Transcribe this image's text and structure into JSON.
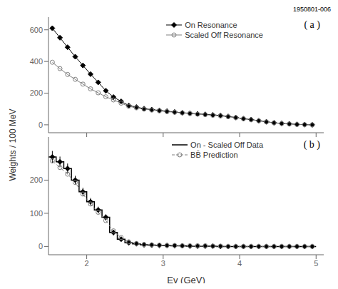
{
  "chart_data": [
    {
      "type": "line",
      "title": "1950801-006",
      "ylabel": "Weights / 100 MeV",
      "annotations": [
        "( a )"
      ],
      "xlim": [
        1.5,
        5.1
      ],
      "xticks": [
        2,
        3,
        4,
        5
      ],
      "ylim": [
        -50,
        680
      ],
      "yticks": [
        0,
        200,
        400,
        600
      ],
      "tick_labels": "y",
      "legend": "upper right",
      "series": [
        {
          "name": "On Resonance",
          "color": "#000000",
          "marker": "diamond",
          "x": [
            1.55,
            1.65,
            1.75,
            1.85,
            1.95,
            2.05,
            2.15,
            2.25,
            2.35,
            2.45,
            2.55,
            2.65,
            2.75,
            2.85,
            2.95,
            3.05,
            3.15,
            3.25,
            3.35,
            3.45,
            3.55,
            3.65,
            3.75,
            3.85,
            3.95,
            4.05,
            4.15,
            4.25,
            4.35,
            4.45,
            4.55,
            4.65,
            4.75,
            4.85,
            4.95
          ],
          "values": [
            610,
            550,
            490,
            430,
            375,
            320,
            268,
            215,
            175,
            148,
            122,
            112,
            102,
            96,
            91,
            86,
            81,
            76,
            73,
            69,
            66,
            63,
            59,
            53,
            46,
            39,
            33,
            26,
            19,
            13,
            9,
            6,
            3,
            1,
            0
          ]
        },
        {
          "name": "Scaled Off Resonance",
          "color": "#808080",
          "marker": "circle",
          "x": [
            1.55,
            1.65,
            1.75,
            1.85,
            1.95,
            2.05,
            2.15,
            2.25,
            2.35,
            2.45,
            2.55,
            2.65,
            2.75,
            2.85,
            2.95,
            3.05,
            3.15,
            3.25,
            3.35,
            3.45,
            3.55,
            3.65,
            3.75,
            3.85,
            3.95,
            4.05,
            4.15,
            4.25,
            4.35,
            4.45,
            4.55,
            4.65,
            4.75,
            4.85,
            4.95
          ],
          "values": [
            395,
            355,
            318,
            287,
            257,
            227,
            202,
            177,
            157,
            137,
            117,
            107,
            99,
            93,
            88,
            83,
            79,
            75,
            71,
            67,
            64,
            60,
            56,
            51,
            45,
            38,
            32,
            25,
            18,
            12,
            8,
            5,
            2,
            1,
            0
          ]
        }
      ]
    },
    {
      "type": "line",
      "xlabel": "Eγ (GeV)",
      "annotations": [
        "( b )"
      ],
      "xlim": [
        1.5,
        5.1
      ],
      "xticks": [
        2,
        3,
        4,
        5
      ],
      "ylim": [
        -25,
        330
      ],
      "yticks": [
        0,
        100,
        200
      ],
      "legend": "upper right",
      "series": [
        {
          "name": "On - Scaled Off Data",
          "type": "step",
          "color": "#000000",
          "bins": [
            1.5,
            1.6,
            1.7,
            1.8,
            1.9,
            2.0,
            2.1,
            2.2,
            2.3,
            2.4,
            2.5,
            2.6,
            2.7,
            2.8,
            2.9,
            3.0,
            3.1,
            3.2,
            3.3,
            3.4,
            3.5,
            3.6,
            3.7,
            3.8,
            3.9,
            4.0,
            4.1,
            4.2,
            4.3,
            4.4,
            4.5,
            4.6,
            4.7,
            4.8,
            4.9,
            5.0
          ],
          "values": [
            270,
            255,
            235,
            200,
            165,
            135,
            110,
            88,
            42,
            22,
            11,
            8,
            5,
            4,
            3,
            3,
            2,
            2,
            1,
            1,
            1,
            1,
            0,
            0,
            0,
            0,
            0,
            0,
            0,
            0,
            0,
            0,
            0,
            0,
            0
          ]
        },
        {
          "type": "scatter",
          "color": "#000000",
          "marker": "diamond",
          "x": [
            1.55,
            1.65,
            1.75,
            1.85,
            1.95,
            2.05,
            2.15,
            2.25,
            2.35,
            2.45,
            2.55,
            2.65,
            2.75,
            2.85,
            2.95,
            3.05,
            3.15,
            3.25,
            3.35,
            3.45,
            3.55,
            3.65,
            3.75,
            3.85,
            3.95,
            4.05,
            4.15,
            4.25,
            4.35,
            4.45,
            4.55,
            4.65,
            4.75,
            4.85,
            4.95
          ],
          "values": [
            270,
            255,
            235,
            200,
            165,
            135,
            110,
            88,
            42,
            22,
            11,
            8,
            5,
            4,
            3,
            3,
            2,
            2,
            1,
            1,
            1,
            1,
            0,
            0,
            0,
            0,
            0,
            0,
            0,
            0,
            0,
            0,
            0,
            0,
            0
          ],
          "errors": [
            18,
            16,
            15,
            13,
            12,
            11,
            10,
            9,
            8,
            7,
            6,
            5,
            4,
            3,
            3,
            3,
            2,
            2,
            2,
            2,
            2,
            2,
            2,
            2,
            2,
            2,
            2,
            2,
            2,
            2,
            2,
            2,
            2,
            2,
            2
          ]
        },
        {
          "name": "BB̄ Prediction",
          "color": "#808080",
          "marker": "circle",
          "line_style": "dashed",
          "x": [
            1.55,
            1.65,
            1.75,
            1.85,
            1.95,
            2.05,
            2.15,
            2.25,
            2.35,
            2.45,
            2.55,
            2.65,
            2.75,
            2.85,
            2.95,
            3.05,
            3.15,
            3.25,
            3.35,
            3.45,
            3.55,
            3.65,
            3.75,
            3.85,
            3.95,
            4.05,
            4.15,
            4.25,
            4.35,
            4.45,
            4.55,
            4.65,
            4.75,
            4.85,
            4.95
          ],
          "values": [
            258,
            238,
            218,
            193,
            158,
            128,
            103,
            78,
            47,
            27,
            14,
            9,
            6,
            5,
            4,
            3,
            3,
            2,
            2,
            2,
            2,
            1,
            1,
            0,
            0,
            0,
            0,
            0,
            0,
            0,
            0,
            0,
            0,
            0,
            0
          ]
        }
      ]
    }
  ]
}
